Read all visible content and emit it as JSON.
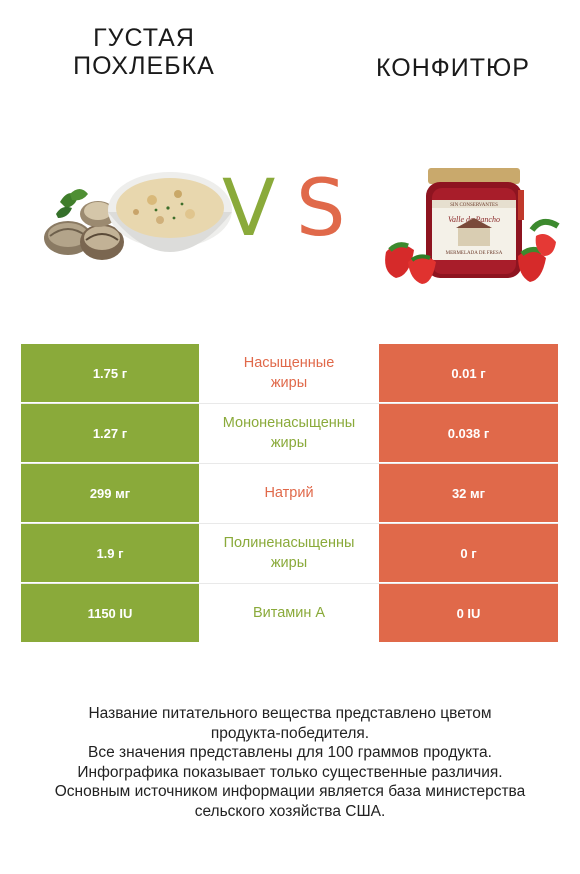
{
  "header": {
    "left_title": "ГУСТАЯ ПОХЛЕБКА",
    "right_title": "КОНФИТЮР",
    "vs_v": "V",
    "vs_s": "S"
  },
  "colors": {
    "left_accent": "#8aaa3a",
    "right_accent": "#e0694a"
  },
  "table": {
    "rows": [
      {
        "left": "1.75 г",
        "nutrient": "Насыщенные\nжиры",
        "right": "0.01 г",
        "winner": "right"
      },
      {
        "left": "1.27 г",
        "nutrient": "Мононенасыщенны\nжиры",
        "right": "0.038 г",
        "winner": "left"
      },
      {
        "left": "299 мг",
        "nutrient": "Натрий",
        "right": "32 мг",
        "winner": "right"
      },
      {
        "left": "1.9 г",
        "nutrient": "Полиненасыщенны\nжиры",
        "right": "0 г",
        "winner": "left"
      },
      {
        "left": "1150 IU",
        "nutrient": "Витамин A",
        "right": "0 IU",
        "winner": "left"
      }
    ]
  },
  "jar_label": {
    "brand": "Valle de Pancho",
    "product": "MERMELADA DE FRESA",
    "tag": "SIN CONSERVANTES"
  },
  "footer": {
    "line1": "Название питательного вещества представлено цветом",
    "line2": "продукта-победителя.",
    "line3": "Все значения представлены для 100 граммов продукта.",
    "line4": "Инфографика показывает только существенные различия.",
    "line5": "Основным источником информации является база министерства",
    "line6": "сельского хозяйства США."
  }
}
